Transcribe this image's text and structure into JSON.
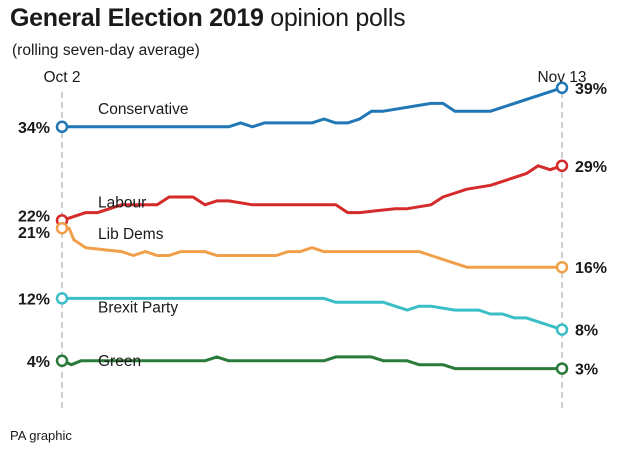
{
  "header": {
    "title_bold": "General Election 2019",
    "title_light": "opinion polls"
  },
  "subtitle": "(rolling seven-day average)",
  "credit": "PA graphic",
  "chart_data": {
    "type": "line",
    "title": "General Election 2019 opinion polls",
    "subtitle": "(rolling seven-day average)",
    "x_start_label": "Oct 2",
    "x_end_label": "Nov 13",
    "xlim": [
      0,
      42
    ],
    "ylim": [
      2,
      40
    ],
    "grid": false,
    "series": [
      {
        "name": "Conservative",
        "color": "#2177b5",
        "start_label": "34%",
        "end_label": "39%",
        "x": [
          0,
          14,
          15,
          16,
          17,
          21,
          22,
          23,
          24,
          25,
          26,
          27,
          31,
          32,
          33,
          34,
          35,
          36,
          42
        ],
        "values": [
          34,
          34,
          34.5,
          34,
          34.5,
          34.5,
          35,
          34.5,
          34.5,
          35,
          36,
          36,
          37,
          37,
          36,
          36,
          36,
          36,
          39
        ]
      },
      {
        "name": "Labour",
        "color": "#d52a2a",
        "start_label": "22%",
        "end_label": "29%",
        "x": [
          0,
          2,
          3,
          5,
          8,
          9,
          11,
          12,
          13,
          14,
          16,
          17,
          18,
          19,
          20,
          23,
          24,
          25,
          28,
          29,
          31,
          32,
          34,
          36,
          37,
          39,
          40,
          41,
          42
        ],
        "values": [
          22,
          23,
          23,
          24,
          24,
          25,
          25,
          24,
          24.5,
          24.5,
          24,
          24,
          24,
          24,
          24,
          24,
          23,
          23,
          23.5,
          23.5,
          24,
          25,
          26,
          26.5,
          27,
          28,
          29,
          28.5,
          29
        ]
      },
      {
        "name": "Lib Dems",
        "color": "#f0a04b",
        "start_label": "21%",
        "end_label": "16%",
        "x": [
          0,
          0.6,
          1,
          2,
          5,
          6,
          7,
          8,
          9,
          10,
          11,
          12,
          13,
          18,
          19,
          20,
          21,
          22,
          23,
          25,
          30,
          31,
          32,
          33,
          34,
          35,
          42
        ],
        "values": [
          21,
          21,
          19.5,
          18.5,
          18,
          17.5,
          18,
          17.5,
          17.5,
          18,
          18,
          18,
          17.5,
          17.5,
          18,
          18,
          18.5,
          18,
          18,
          18,
          18,
          17.5,
          17,
          16.5,
          16,
          16,
          16
        ]
      },
      {
        "name": "Brexit Party",
        "color": "#3bbfc7",
        "start_label": "12%",
        "end_label": "8%",
        "x": [
          0,
          22,
          23,
          27,
          28,
          29,
          30,
          31,
          33,
          34,
          35,
          36,
          37,
          38,
          39,
          40,
          41,
          42
        ],
        "values": [
          12,
          12,
          11.5,
          11.5,
          11,
          10.5,
          11,
          11,
          10.5,
          10.5,
          10.5,
          10,
          10,
          9.5,
          9.5,
          9,
          8.5,
          8
        ]
      },
      {
        "name": "Green",
        "color": "#2a7a3a",
        "start_label": "4%",
        "end_label": "3%",
        "x": [
          0,
          0.8,
          1.6,
          12,
          13,
          14,
          22,
          23,
          26,
          27,
          29,
          30,
          32,
          33,
          42
        ],
        "values": [
          4,
          3.5,
          4,
          4,
          4.5,
          4,
          4,
          4.5,
          4.5,
          4,
          4,
          3.5,
          3.5,
          3,
          3
        ]
      }
    ]
  }
}
